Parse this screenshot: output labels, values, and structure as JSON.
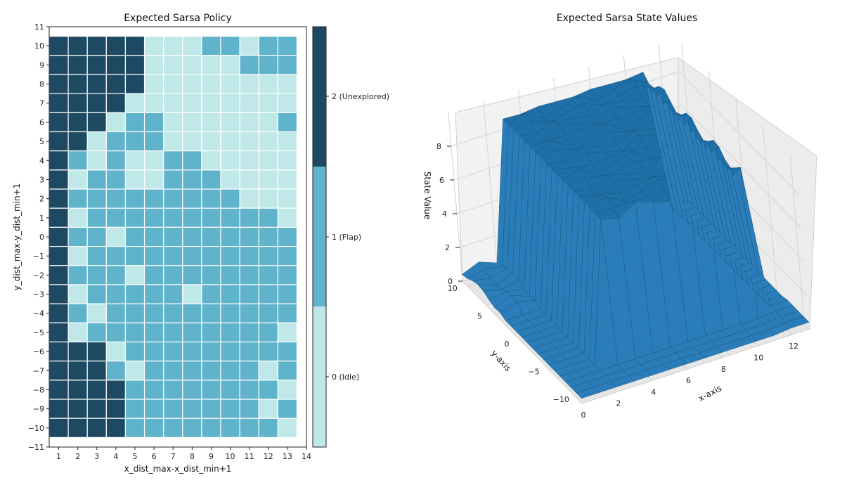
{
  "colors": {
    "idle": "#c0e8e8",
    "flap": "#5fb3cb",
    "unexplored": "#1d4a62",
    "surface": "#1f6fa8",
    "surface_edge": "#174f78",
    "pane": "#f2f2f2",
    "grid": "#d0d0d0"
  },
  "chart_data": [
    {
      "type": "heatmap",
      "title": "Expected Sarsa Policy",
      "xlabel": "x_dist_max-x_dist_min+1",
      "ylabel": "y_dist_max-y_dist_min+1",
      "xlim": [
        0.5,
        14
      ],
      "ylim": [
        -11,
        11
      ],
      "x_ticks": [
        "1",
        "2",
        "3",
        "4",
        "5",
        "6",
        "7",
        "8",
        "9",
        "10",
        "11",
        "12",
        "13",
        "14"
      ],
      "y_ticks": [
        "11",
        "10",
        "9",
        "8",
        "7",
        "6",
        "5",
        "4",
        "3",
        "2",
        "1",
        "0",
        "−1",
        "−2",
        "−3",
        "−4",
        "−5",
        "−6",
        "−7",
        "−8",
        "−9",
        "−10",
        "−11"
      ],
      "x": [
        1,
        2,
        3,
        4,
        5,
        6,
        7,
        8,
        9,
        10,
        11,
        12,
        13
      ],
      "y": [
        10,
        9,
        8,
        7,
        6,
        5,
        4,
        3,
        2,
        1,
        0,
        -1,
        -2,
        -3,
        -4,
        -5,
        -6,
        -7,
        -8,
        -9,
        -10
      ],
      "colorbar": {
        "labels": [
          "2 (Unexplored)",
          "1 (Flap)",
          "0 (Idle)"
        ],
        "values": [
          2,
          1,
          0
        ]
      },
      "values": [
        [
          2,
          2,
          2,
          2,
          2,
          0,
          0,
          0,
          1,
          1,
          0,
          1,
          1
        ],
        [
          2,
          2,
          2,
          2,
          2,
          0,
          0,
          0,
          0,
          0,
          1,
          1,
          1
        ],
        [
          2,
          2,
          2,
          2,
          2,
          0,
          0,
          0,
          0,
          0,
          0,
          0,
          0
        ],
        [
          2,
          2,
          2,
          2,
          0,
          0,
          0,
          0,
          0,
          0,
          0,
          0,
          0
        ],
        [
          2,
          2,
          2,
          0,
          1,
          1,
          0,
          0,
          0,
          0,
          0,
          0,
          1
        ],
        [
          2,
          2,
          0,
          1,
          1,
          1,
          0,
          0,
          0,
          0,
          0,
          0,
          0
        ],
        [
          2,
          1,
          0,
          1,
          0,
          0,
          1,
          1,
          0,
          0,
          0,
          0,
          0
        ],
        [
          2,
          0,
          1,
          1,
          0,
          0,
          1,
          1,
          1,
          0,
          0,
          0,
          0
        ],
        [
          2,
          1,
          1,
          1,
          1,
          1,
          1,
          1,
          1,
          1,
          0,
          0,
          0
        ],
        [
          2,
          0,
          1,
          1,
          1,
          1,
          1,
          1,
          1,
          1,
          1,
          1,
          0
        ],
        [
          2,
          1,
          1,
          0,
          1,
          1,
          1,
          1,
          1,
          1,
          1,
          1,
          1
        ],
        [
          2,
          0,
          1,
          1,
          1,
          1,
          1,
          1,
          1,
          1,
          1,
          1,
          1
        ],
        [
          2,
          1,
          1,
          1,
          0,
          1,
          1,
          1,
          1,
          1,
          1,
          1,
          1
        ],
        [
          2,
          0,
          1,
          1,
          1,
          1,
          1,
          0,
          1,
          1,
          1,
          1,
          1
        ],
        [
          2,
          1,
          0,
          1,
          1,
          1,
          1,
          1,
          1,
          1,
          1,
          1,
          1
        ],
        [
          2,
          0,
          1,
          1,
          1,
          1,
          1,
          1,
          1,
          1,
          1,
          1,
          0
        ],
        [
          2,
          2,
          2,
          0,
          1,
          1,
          1,
          1,
          1,
          1,
          1,
          1,
          1
        ],
        [
          2,
          2,
          2,
          1,
          0,
          1,
          1,
          1,
          1,
          1,
          1,
          0,
          1
        ],
        [
          2,
          2,
          2,
          2,
          1,
          1,
          1,
          1,
          1,
          1,
          1,
          1,
          0
        ],
        [
          2,
          2,
          2,
          2,
          1,
          1,
          1,
          1,
          1,
          1,
          1,
          0,
          1
        ],
        [
          2,
          2,
          2,
          2,
          1,
          1,
          1,
          1,
          1,
          1,
          1,
          1,
          0
        ]
      ]
    },
    {
      "type": "surface3d",
      "title": "Expected Sarsa State Values",
      "xlabel": "x-axis",
      "ylabel": "y-axis",
      "zlabel": "State Value",
      "x_ticks": [
        "0",
        "2",
        "4",
        "6",
        "8",
        "10",
        "12"
      ],
      "y_ticks": [
        "−10",
        "−5",
        "0",
        "5",
        "10"
      ],
      "z_ticks": [
        "0",
        "2",
        "4",
        "6",
        "8"
      ],
      "xlim": [
        0,
        13
      ],
      "ylim": [
        -11,
        11
      ],
      "zlim": [
        0,
        10
      ]
    }
  ]
}
